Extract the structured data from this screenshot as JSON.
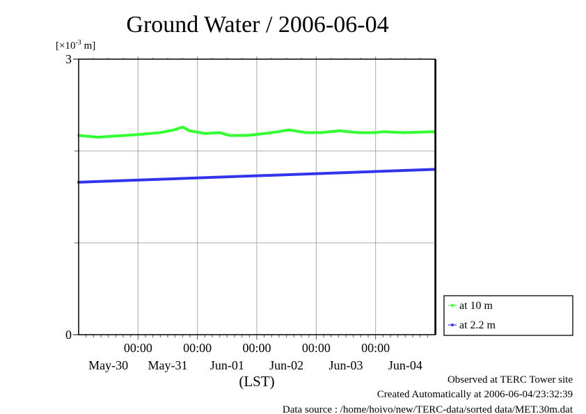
{
  "chart_data": {
    "type": "line",
    "title": "Ground Water / 2006-06-04",
    "ylabel_prefix": "[×10",
    "ylabel_exp": "-3",
    "ylabel_suffix": " m]",
    "ylim": [
      0,
      3
    ],
    "yticks": [
      {
        "value": 0,
        "label": "0"
      },
      {
        "value": 3,
        "label": "3"
      }
    ],
    "ygrid": [
      1,
      2
    ],
    "xlim_days": [
      0,
      6
    ],
    "xgrid_days": [
      1,
      2,
      3,
      4,
      5
    ],
    "xtick_time_labels": [
      {
        "day": 1,
        "label": "00:00"
      },
      {
        "day": 2,
        "label": "00:00"
      },
      {
        "day": 3,
        "label": "00:00"
      },
      {
        "day": 4,
        "label": "00:00"
      },
      {
        "day": 5,
        "label": "00:00"
      }
    ],
    "xdate_labels": [
      {
        "day": 0.5,
        "label": "May-30"
      },
      {
        "day": 1.5,
        "label": "May-31"
      },
      {
        "day": 2.5,
        "label": "Jun-01"
      },
      {
        "day": 3.5,
        "label": "Jun-02"
      },
      {
        "day": 4.5,
        "label": "Jun-03"
      },
      {
        "day": 5.5,
        "label": "Jun-04"
      }
    ],
    "xlabel": "(LST)",
    "grid": true,
    "legend_placement": "bottom-right, outside",
    "series": [
      {
        "name": "at 10 m",
        "color": "#33ff33",
        "x_days": [
          0,
          0.32,
          0.55,
          0.78,
          1.02,
          1.37,
          1.61,
          1.75,
          1.87,
          2.13,
          2.37,
          2.54,
          2.84,
          3.13,
          3.36,
          3.54,
          3.83,
          4.07,
          4.39,
          4.71,
          5.0,
          5.12,
          5.47,
          6.0
        ],
        "values": [
          2.17,
          2.15,
          2.16,
          2.17,
          2.18,
          2.2,
          2.23,
          2.26,
          2.22,
          2.19,
          2.2,
          2.17,
          2.17,
          2.19,
          2.21,
          2.23,
          2.2,
          2.2,
          2.22,
          2.2,
          2.2,
          2.21,
          2.2,
          2.21
        ]
      },
      {
        "name": "at 2.2 m",
        "color": "#3333ee",
        "x_days": [
          0,
          6
        ],
        "values": [
          1.66,
          1.8
        ]
      }
    ]
  },
  "footer": {
    "observed": "Observed at TERC Tower site",
    "created": "Created Automatically at 2006-06-04/23:32:39",
    "source": "Data source : /home/hoivo/new/TERC-data/sorted  data/MET.30m.dat"
  }
}
